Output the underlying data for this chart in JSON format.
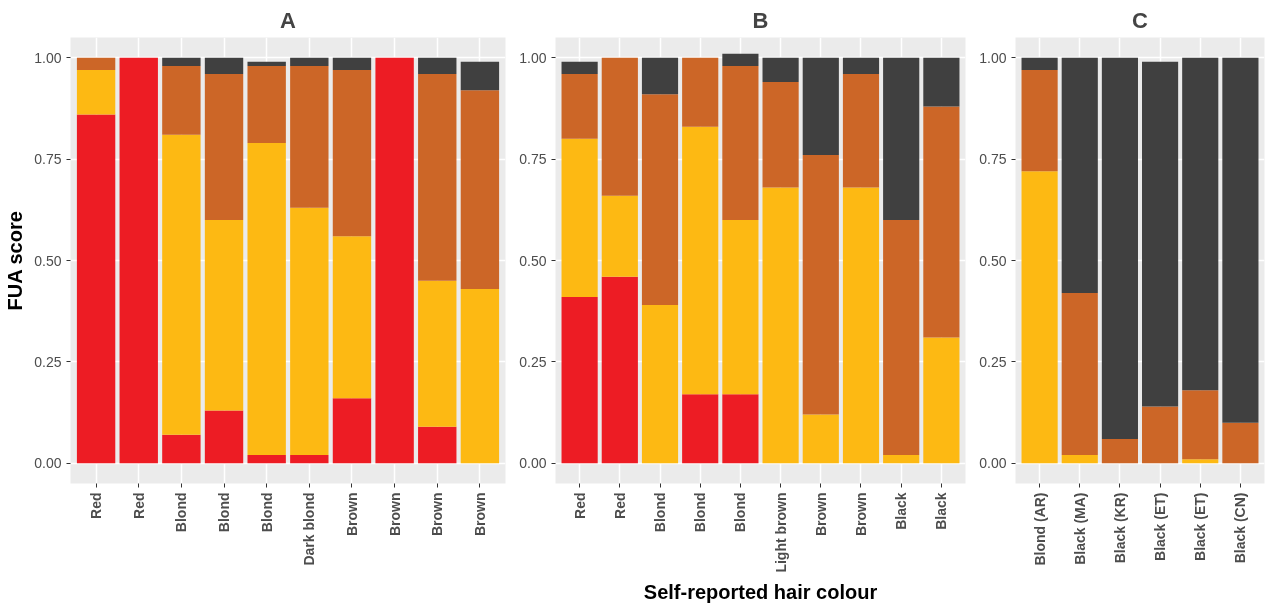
{
  "chart_data": [
    {
      "type": "bar",
      "title": "A",
      "ylabel": "FUA score",
      "stacked": true,
      "grid": true,
      "categories": [
        "Red",
        "Red",
        "Blond",
        "Blond",
        "Blond",
        "Dark blond",
        "Brown",
        "Brown",
        "Brown",
        "Brown"
      ],
      "ylim": [
        -0.05,
        1.05
      ],
      "yticks": [
        {
          "value": 0,
          "label": "0.00"
        },
        {
          "value": 0.25,
          "label": "0.25"
        },
        {
          "value": 0.5,
          "label": "0.50"
        },
        {
          "value": 0.75,
          "label": "0.75"
        },
        {
          "value": 1,
          "label": "1.00"
        }
      ],
      "series": [
        {
          "color": "#ed1c24",
          "values": [
            0.86,
            1.0,
            0.07,
            0.13,
            0.02,
            0.02,
            0.16,
            1.0,
            0.09,
            0
          ]
        },
        {
          "color": "#fdb913",
          "values": [
            0.11,
            0,
            0.74,
            0.47,
            0.77,
            0.61,
            0.4,
            0,
            0.36,
            0.43
          ]
        },
        {
          "color": "#cc6627",
          "values": [
            0.03,
            0,
            0.17,
            0.36,
            0.19,
            0.35,
            0.41,
            0,
            0.51,
            0.49
          ]
        },
        {
          "color": "#404040",
          "values": [
            0,
            0,
            0.02,
            0.04,
            0.01,
            0.02,
            0.03,
            0,
            0.04,
            0.07
          ]
        }
      ]
    },
    {
      "type": "bar",
      "title": "B",
      "xlabel": "Self-reported hair colour",
      "stacked": true,
      "grid": true,
      "categories": [
        "Red",
        "Red",
        "Blond",
        "Blond",
        "Blond",
        "Light brown",
        "Brown",
        "Brown",
        "Black",
        "Black"
      ],
      "ylim": [
        -0.05,
        1.05
      ],
      "yticks": [
        {
          "value": 0,
          "label": "0.00"
        },
        {
          "value": 0.25,
          "label": "0.25"
        },
        {
          "value": 0.5,
          "label": "0.50"
        },
        {
          "value": 0.75,
          "label": "0.75"
        },
        {
          "value": 1,
          "label": "1.00"
        }
      ],
      "series": [
        {
          "color": "#ed1c24",
          "values": [
            0.41,
            0.46,
            0,
            0.17,
            0.17,
            0,
            0,
            0,
            0,
            0
          ]
        },
        {
          "color": "#fdb913",
          "values": [
            0.39,
            0.2,
            0.39,
            0.66,
            0.43,
            0.68,
            0.12,
            0.68,
            0.02,
            0.31
          ]
        },
        {
          "color": "#cc6627",
          "values": [
            0.16,
            0.34,
            0.52,
            0.17,
            0.38,
            0.26,
            0.64,
            0.28,
            0.58,
            0.57
          ]
        },
        {
          "color": "#404040",
          "values": [
            0.03,
            0,
            0.09,
            0,
            0.03,
            0.06,
            0.24,
            0.04,
            0.4,
            0.12
          ]
        }
      ]
    },
    {
      "type": "bar",
      "title": "C",
      "stacked": true,
      "grid": true,
      "categories": [
        "Blond (AR)",
        "Black (MA)",
        "Black (KR)",
        "Black (ET)",
        "Black (ET)",
        "Black (CN)"
      ],
      "ylim": [
        -0.05,
        1.05
      ],
      "yticks": [
        {
          "value": 0,
          "label": "0.00"
        },
        {
          "value": 0.25,
          "label": "0.25"
        },
        {
          "value": 0.5,
          "label": "0.50"
        },
        {
          "value": 0.75,
          "label": "0.75"
        },
        {
          "value": 1,
          "label": "1.00"
        }
      ],
      "series": [
        {
          "color": "#fdb913",
          "values": [
            0.72,
            0.02,
            0,
            0,
            0.01,
            0
          ]
        },
        {
          "color": "#cc6627",
          "values": [
            0.25,
            0.4,
            0.06,
            0.14,
            0.17,
            0.1
          ]
        },
        {
          "color": "#404040",
          "values": [
            0.03,
            0.58,
            0.94,
            0.85,
            0.82,
            0.9
          ]
        }
      ]
    }
  ]
}
